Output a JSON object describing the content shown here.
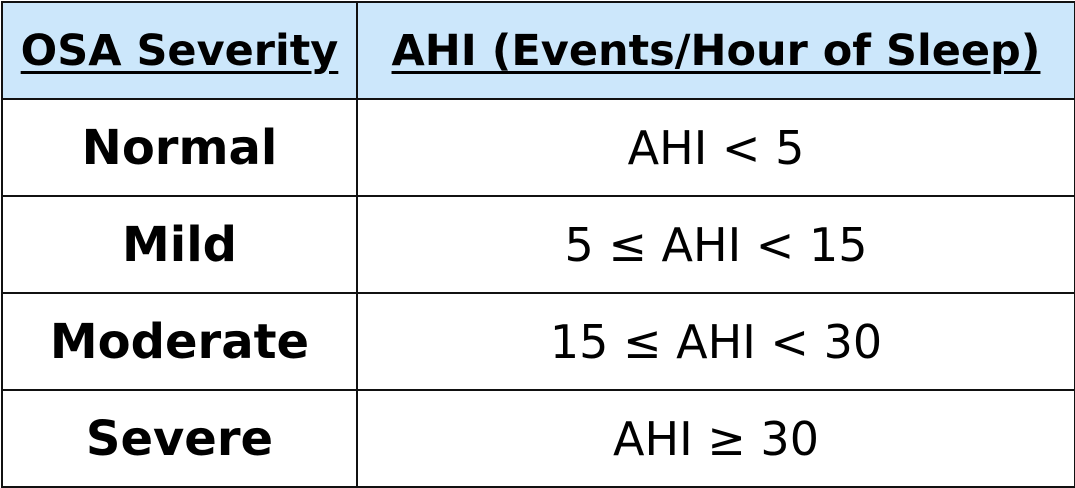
{
  "table": {
    "headers": {
      "severity": "OSA Severity",
      "ahi": "AHI (Events/Hour of Sleep)"
    },
    "rows": [
      {
        "severity": "Normal",
        "ahi": "AHI < 5"
      },
      {
        "severity": "Mild",
        "ahi": "5 ≤ AHI < 15"
      },
      {
        "severity": "Moderate",
        "ahi": "15 ≤ AHI < 30"
      },
      {
        "severity": "Severe",
        "ahi": "AHI ≥ 30"
      }
    ]
  },
  "colors": {
    "header_background": "#cce7fb",
    "border": "#111111",
    "text": "#000000"
  }
}
